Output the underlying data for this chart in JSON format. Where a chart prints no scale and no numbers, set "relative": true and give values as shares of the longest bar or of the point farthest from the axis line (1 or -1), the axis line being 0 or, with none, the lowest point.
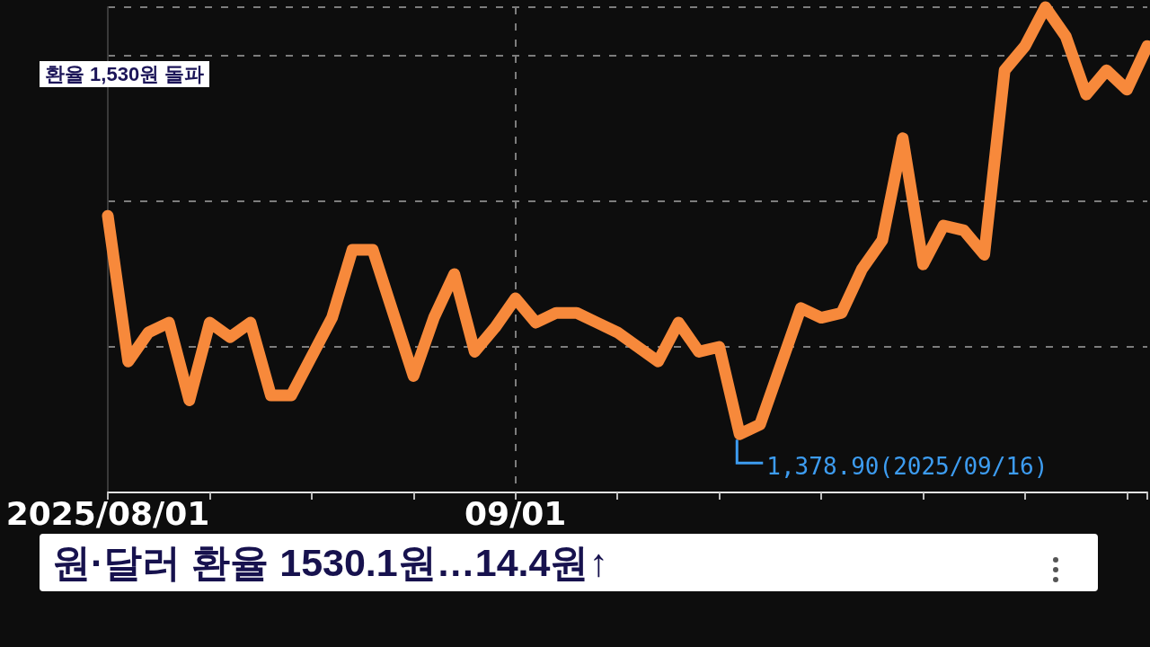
{
  "chart_data": {
    "type": "line",
    "title": "환율 1,530원 돌파",
    "subtitle": "원·달러 환율 1530.1원…14.4원↑",
    "categories": [
      "2025/08/01",
      null,
      null,
      null,
      null,
      null,
      null,
      null,
      null,
      null,
      null,
      null,
      null,
      null,
      null,
      null,
      null,
      null,
      null,
      null,
      "09/01",
      null,
      null,
      null,
      null,
      null,
      null,
      null,
      null,
      null,
      null,
      null,
      null,
      null,
      null,
      null,
      null,
      null,
      null,
      null,
      null,
      null,
      null,
      null,
      null,
      null,
      null,
      null,
      null,
      null,
      null,
      null
    ],
    "relative": true,
    "series": [
      {
        "color": "#f7893b",
        "values": [
          0.57,
          0.27,
          0.33,
          0.35,
          0.19,
          0.35,
          0.32,
          0.35,
          0.2,
          0.2,
          0.28,
          0.36,
          0.5,
          0.5,
          0.37,
          0.24,
          0.36,
          0.45,
          0.29,
          0.34,
          0.4,
          0.35,
          0.37,
          0.37,
          0.35,
          0.33,
          0.3,
          0.27,
          0.35,
          0.29,
          0.3,
          0.12,
          0.14,
          0.26,
          0.38,
          0.36,
          0.37,
          0.46,
          0.52,
          0.73,
          0.47,
          0.55,
          0.54,
          0.49,
          0.87,
          0.92,
          1,
          0.94,
          0.82,
          0.87,
          0.83,
          0.92
        ]
      }
    ],
    "annotations": [
      "1,378.90(2025/09/16)"
    ],
    "grid": true,
    "marker": "none"
  }
}
